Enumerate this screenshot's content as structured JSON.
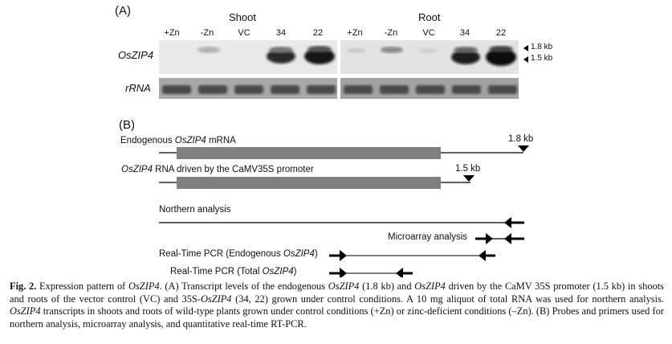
{
  "panel_a": {
    "label": "(A)",
    "shoot_header": "Shoot",
    "root_header": "Root",
    "lanes": [
      "+Zn",
      "-Zn",
      "VC",
      "34",
      "22"
    ],
    "gene_label": "OsZIP4",
    "rrna_label": "rRNA",
    "size_upper": "1.8 kb",
    "size_lower": "1.5 kb"
  },
  "panel_b": {
    "label": "(B)",
    "endogenous_prefix": "Endogenous ",
    "endogenous_gene": "OsZIP4",
    "endogenous_suffix": " mRNA",
    "endogenous_size": "1.8 kb",
    "driven_gene": "OsZIP4",
    "driven_suffix": " RNA driven by the CaMV35S promoter",
    "driven_size": "1.5 kb",
    "northern": "Northern analysis",
    "microarray": "Microarray analysis",
    "rt_endo_prefix": "Real-Time PCR (Endogenous ",
    "rt_endo_gene": "OsZIP4",
    "rt_endo_suffix": ")",
    "rt_total_prefix": "Real-Time PCR (Total ",
    "rt_total_gene": "OsZIP4",
    "rt_total_suffix": ")"
  },
  "caption": {
    "fig": "Fig. 2.",
    "s1": " Expression pattern of ",
    "g1": "OsZIP4",
    "s2": ". (A) Transcript levels of the endogenous ",
    "g2": "OsZIP4",
    "s3": " (1.8 kb) and ",
    "g3": "OsZIP4",
    "s4": " driven by the CaMV 35S promoter (1.5 kb) in shoots and roots of the vector control (VC) and 35S-",
    "g4": "OsZIP4",
    "s5": " (34, 22) grown under control conditions. A 10 mg aliquot of total RNA was used for northern analysis. ",
    "g5": "OsZIP4",
    "s6": " transcripts in shoots and roots of wild-type plants grown under control conditions (+Zn) or zinc-deficient conditions (–Zn). (B) Probes and primers used for northern analysis, microarray analysis, and quantitative real-time RT-PCR."
  }
}
